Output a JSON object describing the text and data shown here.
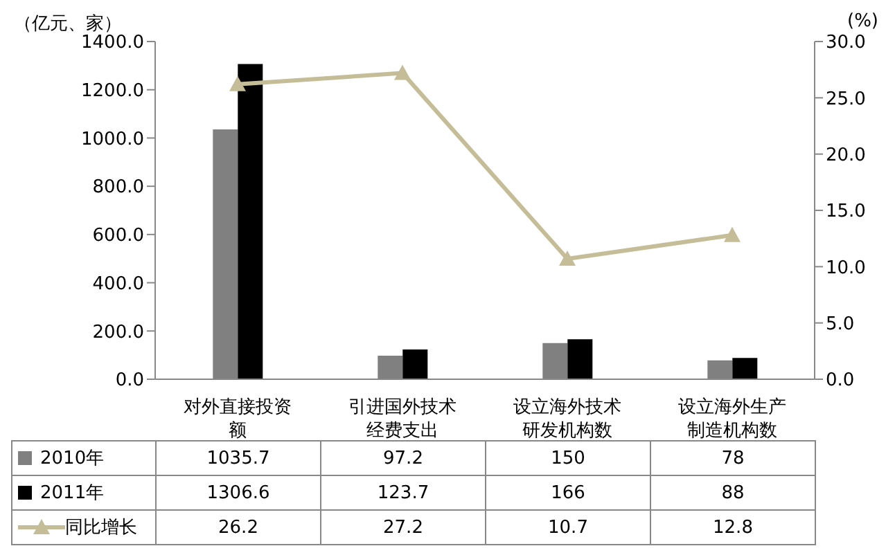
{
  "chart_data": {
    "type": "bar",
    "ylabel": "（亿元、家）",
    "y2label": "(%)",
    "categories": [
      "对外直接投资额",
      "引进国外技术经费支出",
      "设立海外技术研发机构数",
      "设立海外生产制造机构数"
    ],
    "series": [
      {
        "name": "2010年",
        "color": "#808080",
        "values": [
          1035.7,
          97.2,
          150,
          78
        ]
      },
      {
        "name": "2011年",
        "color": "#000000",
        "values": [
          1306.6,
          123.7,
          166,
          88
        ]
      },
      {
        "name": "同比增长",
        "type": "line",
        "axis": "y2",
        "color": "#c4bd97",
        "marker": "triangle",
        "values": [
          26.2,
          27.2,
          10.7,
          12.8
        ]
      }
    ],
    "ylim": [
      0,
      1400
    ],
    "yticks": [
      {
        "value": 0,
        "label": "0.0"
      },
      {
        "value": 200,
        "label": "200.0"
      },
      {
        "value": 400,
        "label": "400.0"
      },
      {
        "value": 600,
        "label": "600.0"
      },
      {
        "value": 800,
        "label": "800.0"
      },
      {
        "value": 1000,
        "label": "1000.0"
      },
      {
        "value": 1200,
        "label": "1200.0"
      },
      {
        "value": 1400,
        "label": "1400.0"
      }
    ],
    "y2lim": [
      0,
      30
    ],
    "y2ticks": [
      {
        "value": 0,
        "label": "0.0"
      },
      {
        "value": 5,
        "label": "5.0"
      },
      {
        "value": 10,
        "label": "10.0"
      },
      {
        "value": 15,
        "label": "15.0"
      },
      {
        "value": 20,
        "label": "20.0"
      },
      {
        "value": 25,
        "label": "25.0"
      },
      {
        "value": 30,
        "label": "30.0"
      }
    ],
    "data_labels": true,
    "legend": "bottom left",
    "grid": false
  }
}
